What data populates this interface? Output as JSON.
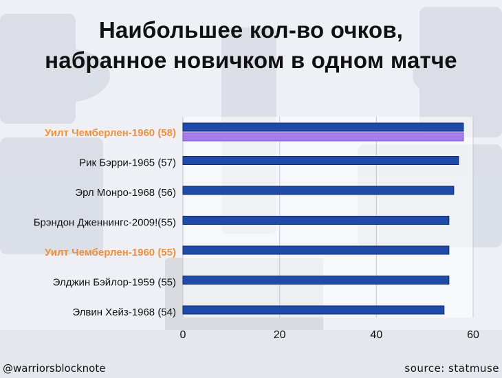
{
  "title_line1": "Наибольшее кол-во очков,",
  "title_line2": "набранное новичком в одном матче",
  "footer": {
    "handle": "@warriorsblocknote",
    "source": "source: statmuse"
  },
  "colors": {
    "bar": "#1f4aa8",
    "bar_highlight": "#a77be8",
    "label_highlight": "#f0903a",
    "label": "#111111"
  },
  "chart_data": {
    "type": "bar",
    "orientation": "horizontal",
    "categories": [
      "Уилт Чемберлен-1960 (58)",
      "Рик Бэрри-1965 (57)",
      "Эрл Монро-1968 (56)",
      "Брэндон Дженнингс-2009!(55)",
      "Уилт Чемберлен-1960 (55)",
      "Элджин Бэйлор-1959 (55)",
      "Элвин Хейз-1968 (54)"
    ],
    "series": [
      {
        "values": [
          58,
          57,
          56,
          55,
          55,
          55,
          54
        ],
        "color": "#1f4aa8"
      },
      {
        "values": [
          58,
          null,
          null,
          null,
          null,
          null,
          null
        ],
        "color": "#a77be8"
      }
    ],
    "highlighted_categories": [
      0,
      4
    ],
    "xlim": [
      0,
      60
    ],
    "xticks": [
      0,
      20,
      40,
      60
    ],
    "grid": true,
    "xlabel": "",
    "ylabel": ""
  }
}
